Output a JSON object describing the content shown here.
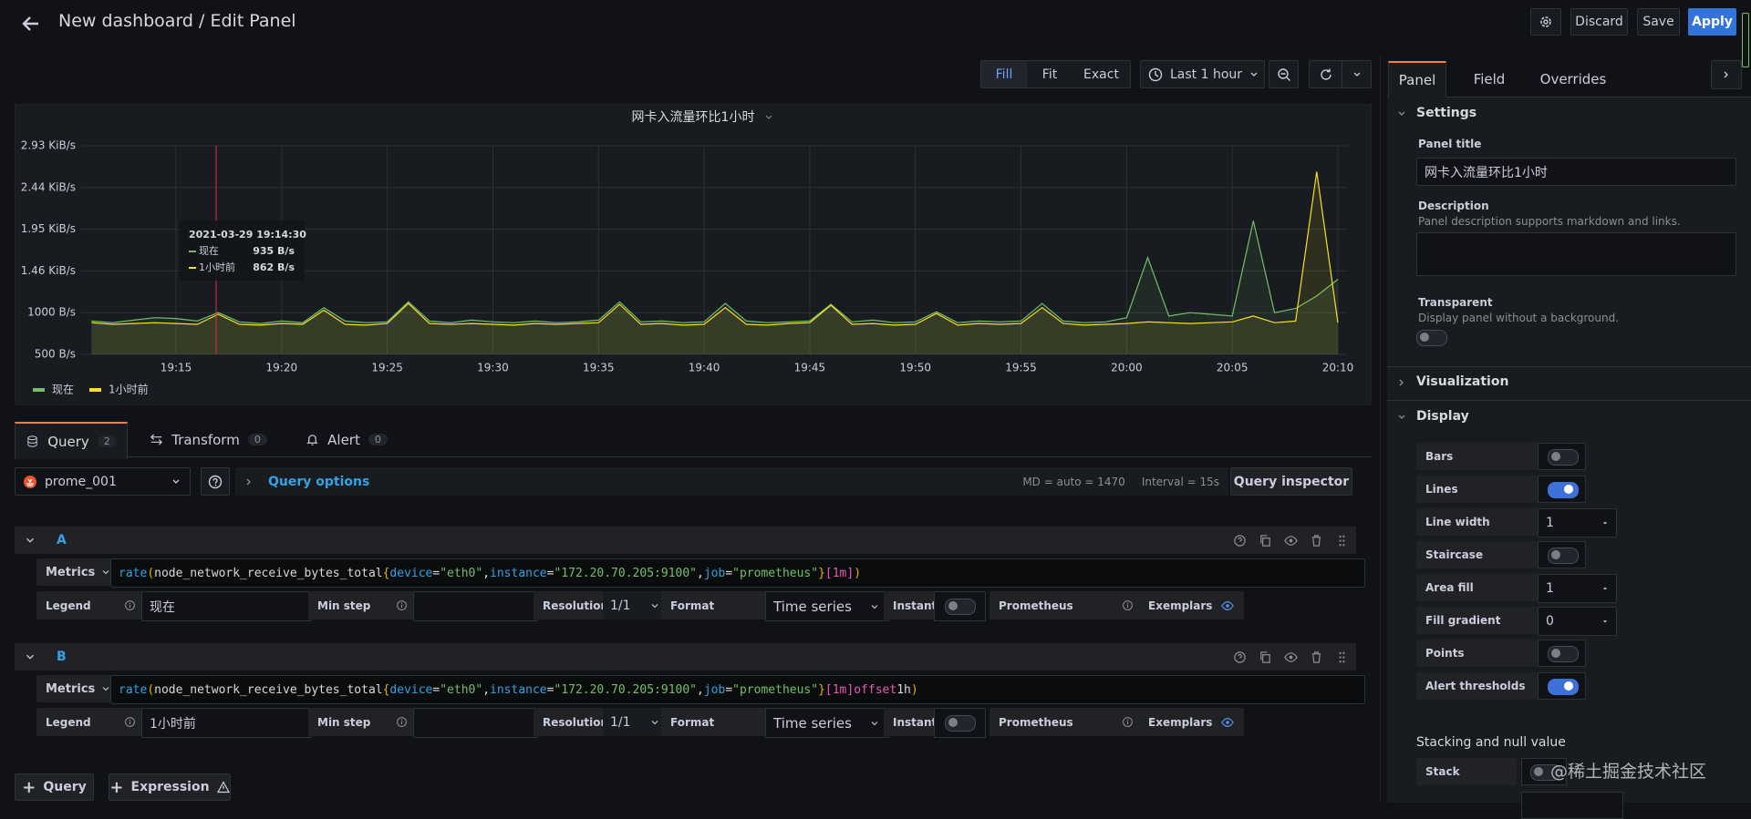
{
  "header": {
    "title": "New dashboard / Edit Panel",
    "discard": "Discard",
    "save": "Save",
    "apply": "Apply"
  },
  "toolbar": {
    "fill": "Fill",
    "fit": "Fit",
    "exact": "Exact",
    "time_range": "Last 1 hour"
  },
  "chart_data": {
    "type": "line",
    "title": "网卡入流量环比1小时",
    "x": [
      "19:11",
      "19:12",
      "19:13",
      "19:14",
      "19:15",
      "19:16",
      "19:17",
      "19:18",
      "19:19",
      "19:20",
      "19:21",
      "19:22",
      "19:23",
      "19:24",
      "19:25",
      "19:26",
      "19:27",
      "19:28",
      "19:29",
      "19:30",
      "19:31",
      "19:32",
      "19:33",
      "19:34",
      "19:35",
      "19:36",
      "19:37",
      "19:38",
      "19:39",
      "19:40",
      "19:41",
      "19:42",
      "19:43",
      "19:44",
      "19:45",
      "19:46",
      "19:47",
      "19:48",
      "19:49",
      "19:50",
      "19:51",
      "19:52",
      "19:53",
      "19:54",
      "19:55",
      "19:56",
      "19:57",
      "19:58",
      "19:59",
      "20:00",
      "20:01",
      "20:02",
      "20:03",
      "20:04",
      "20:05",
      "20:06",
      "20:07",
      "20:08",
      "20:09",
      "20:10"
    ],
    "series": [
      {
        "name": "现在",
        "color": "#73bf69",
        "values": [
          900,
          880,
          910,
          940,
          930,
          900,
          1000,
          890,
          870,
          900,
          880,
          1060,
          900,
          880,
          890,
          1130,
          900,
          880,
          910,
          890,
          880,
          900,
          880,
          890,
          910,
          1130,
          890,
          900,
          880,
          890,
          1110,
          900,
          880,
          890,
          900,
          1100,
          890,
          910,
          880,
          890,
          1010,
          880,
          900,
          890,
          900,
          1110,
          900,
          880,
          890,
          940,
          1660,
          960,
          1000,
          980,
          960,
          2100,
          1000,
          1050,
          1200,
          1400
        ]
      },
      {
        "name": "1小时前",
        "color": "#fade2a",
        "values": [
          880,
          860,
          870,
          880,
          870,
          860,
          980,
          860,
          850,
          870,
          860,
          1030,
          860,
          850,
          870,
          1110,
          870,
          860,
          870,
          860,
          850,
          870,
          860,
          870,
          880,
          1100,
          860,
          870,
          850,
          860,
          1060,
          860,
          850,
          870,
          880,
          1090,
          860,
          870,
          850,
          860,
          990,
          850,
          870,
          860,
          870,
          1060,
          870,
          850,
          860,
          870,
          890,
          880,
          870,
          880,
          890,
          960,
          880,
          900,
          2690,
          880
        ]
      }
    ],
    "xticks": [
      "19:15",
      "19:20",
      "19:25",
      "19:30",
      "19:35",
      "19:40",
      "19:45",
      "19:50",
      "19:55",
      "20:00",
      "20:05",
      "20:10"
    ],
    "ylim": [
      500,
      3000
    ],
    "yticks": [
      {
        "value": 500,
        "label": "500 B/s"
      },
      {
        "value": 1000,
        "label": "1000 B/s"
      },
      {
        "value": 1500,
        "label": "1.46 KiB/s"
      },
      {
        "value": 2000,
        "label": "1.95 KiB/s"
      },
      {
        "value": 2500,
        "label": "2.44 KiB/s"
      },
      {
        "value": 3000,
        "label": "2.93 KiB/s"
      }
    ],
    "grid": true,
    "area_fill": true,
    "tooltip": {
      "time": "2021-03-29 19:14:30",
      "rows": [
        {
          "name": "现在",
          "value": "935 B/s"
        },
        {
          "name": "1小时前",
          "value": "862 B/s"
        }
      ]
    }
  },
  "query_tabs": [
    {
      "label": "Query",
      "count": 2
    },
    {
      "label": "Transform",
      "count": 0
    },
    {
      "label": "Alert",
      "count": 0
    }
  ],
  "query_bar": {
    "datasource": "prome_001",
    "options": "Query options",
    "md": "MD = auto = 1470",
    "interval": "Interval = 15s",
    "inspector": "Query inspector"
  },
  "field_labels": {
    "metrics": "Metrics",
    "legend": "Legend",
    "min_step": "Min step",
    "resolution": "Resolution",
    "format": "Format",
    "instant": "Instant",
    "prometheus": "Prometheus",
    "exemplars": "Exemplars"
  },
  "queries": [
    {
      "ref": "A",
      "expr": "rate(node_network_receive_bytes_total{device=\"eth0\", instance=\"172.20.70.205:9100\", job=\"prometheus\"}[1m])",
      "legend": "现在",
      "resolution": "1/1",
      "format": "Time series",
      "instant": false
    },
    {
      "ref": "B",
      "expr": "rate(node_network_receive_bytes_total{device=\"eth0\", instance=\"172.20.70.205:9100\", job=\"prometheus\"}[1m] offset 1h)",
      "legend": "1小时前",
      "resolution": "1/1",
      "format": "Time series",
      "instant": false
    }
  ],
  "add_buttons": {
    "query": "Query",
    "expression": "Expression"
  },
  "side": {
    "tabs": [
      "Panel",
      "Field",
      "Overrides"
    ],
    "settings": "Settings",
    "panel_title_label": "Panel title",
    "panel_title": "网卡入流量环比1小时",
    "description_label": "Description",
    "description_hint": "Panel description supports markdown and links.",
    "transparent_label": "Transparent",
    "transparent_hint": "Display panel without a background.",
    "transparent": false,
    "visualization": "Visualization",
    "display": "Display",
    "display_options": [
      {
        "label": "Bars",
        "on": false
      },
      {
        "label": "Lines",
        "on": true
      },
      {
        "label": "Line width",
        "value": 1
      },
      {
        "label": "Staircase",
        "on": false
      },
      {
        "label": "Area fill",
        "value": 1
      },
      {
        "label": "Fill gradient",
        "value": 0
      },
      {
        "label": "Points",
        "on": false
      },
      {
        "label": "Alert thresholds",
        "on": true
      }
    ],
    "stacking": "Stacking and null value",
    "stack": "Stack",
    "stack_on": false
  },
  "watermark": "@稀土掘金技术社区"
}
